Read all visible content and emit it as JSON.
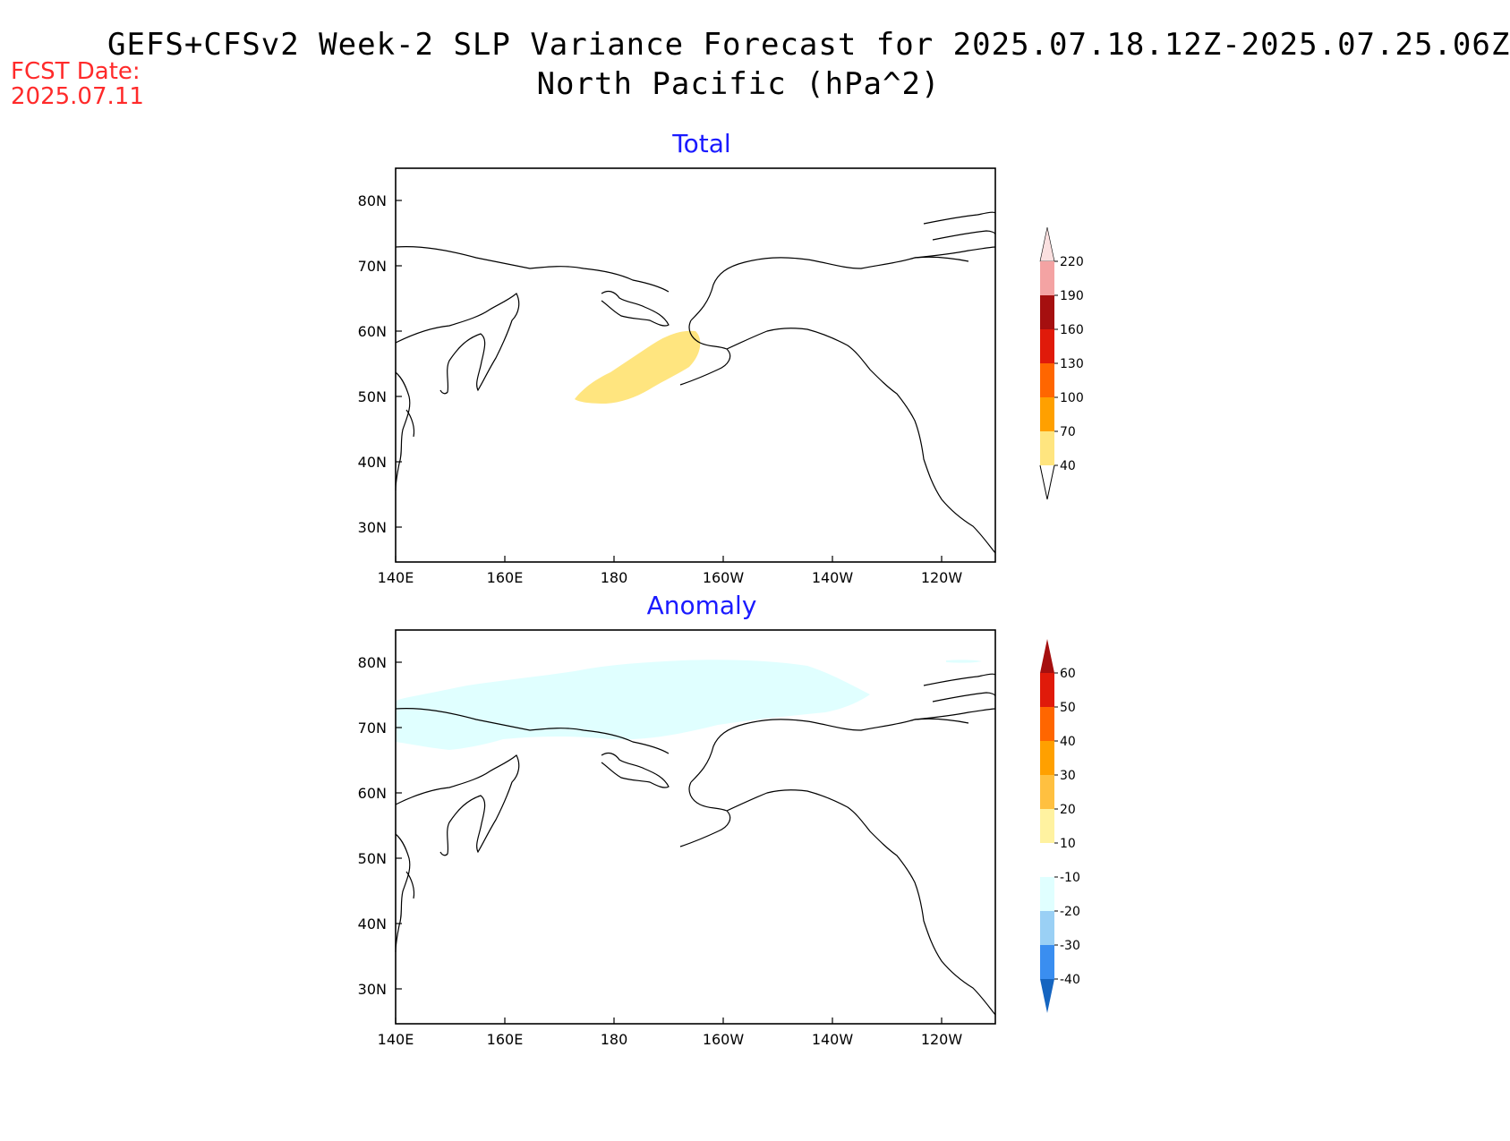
{
  "title": {
    "line1": "GEFS+CFSv2 Week-2 SLP Variance Forecast for 2025.07.18.12Z-2025.07.25.06Z",
    "line2": "North Pacific (hPa^2)"
  },
  "fcst": {
    "label": "FCST Date:",
    "date": "2025.07.11"
  },
  "axes": {
    "lat_ticks": [
      "80N",
      "70N",
      "60N",
      "50N",
      "40N",
      "30N"
    ],
    "lon_ticks": [
      "140E",
      "160E",
      "180",
      "160W",
      "140W",
      "120W"
    ]
  },
  "panels": [
    {
      "title": "Total",
      "colorbar": {
        "labels": [
          "220",
          "190",
          "160",
          "130",
          "100",
          "70",
          "40"
        ],
        "colors": [
          "#fbe0e0",
          "#f4a3a3",
          "#a50f0f",
          "#e01a0a",
          "#ff6600",
          "#ffa000",
          "#ffe57f"
        ]
      }
    },
    {
      "title": "Anomaly",
      "colorbar": {
        "labels": [
          "60",
          "50",
          "40",
          "30",
          "20",
          "10",
          "-10",
          "-20",
          "-30",
          "-40"
        ],
        "colors": [
          "#a50f0f",
          "#e01a0a",
          "#ff6600",
          "#ffa000",
          "#ffc040",
          "#fff2a0",
          "#ffffff",
          "#e0ffff",
          "#9ad0f5",
          "#3a8ef0",
          "#1565c0"
        ]
      }
    }
  ]
}
